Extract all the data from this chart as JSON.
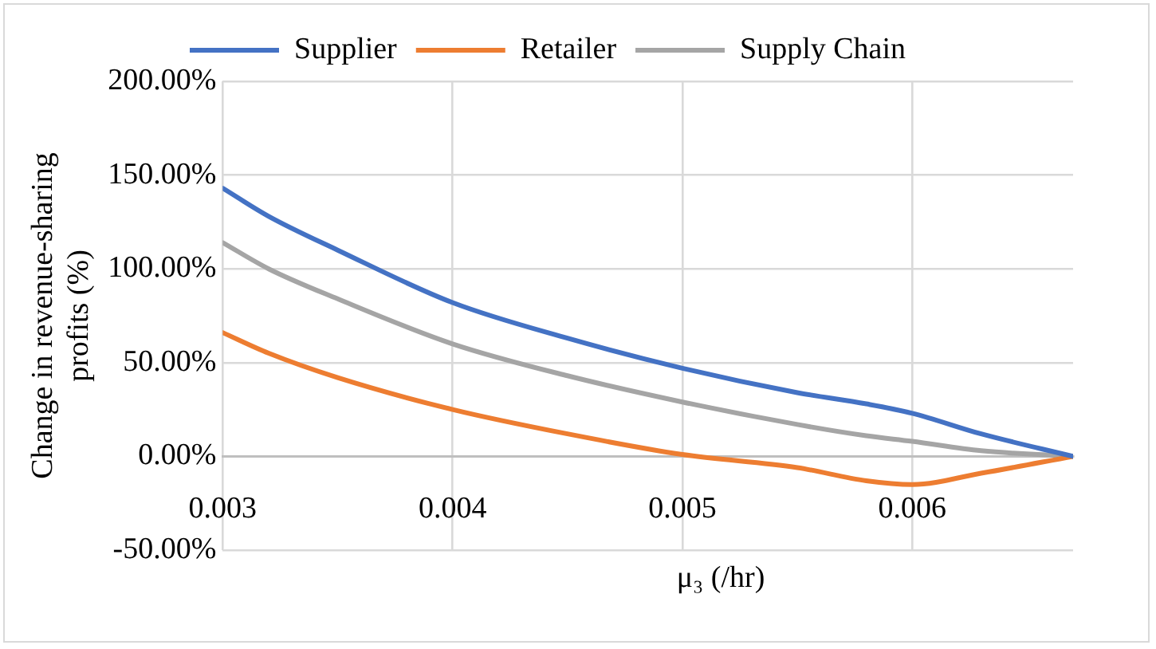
{
  "chart_data": {
    "type": "line",
    "xlabel": "μ₃ (/hr)",
    "ylabel": "Change in revenue-sharing profits (%)",
    "x": [
      0.003,
      0.0032,
      0.0035,
      0.004,
      0.0045,
      0.005,
      0.0055,
      0.0058,
      0.006,
      0.0063,
      0.0067
    ],
    "series": [
      {
        "name": "Supplier",
        "color": "#4472c4",
        "values": [
          143,
          128,
          110,
          82,
          63,
          47,
          34,
          28,
          23,
          12,
          0
        ]
      },
      {
        "name": "Retailer",
        "color": "#ed7d31",
        "values": [
          66,
          55,
          42,
          25,
          12,
          1,
          -6,
          -13,
          -15,
          -9,
          0
        ]
      },
      {
        "name": "Supply Chain",
        "color": "#a5a5a5",
        "values": [
          114,
          100,
          84,
          60,
          43,
          29,
          17,
          11,
          8,
          3,
          0
        ]
      }
    ],
    "xlim": [
      0.003,
      0.0067
    ],
    "xticks": [
      0.003,
      0.004,
      0.005,
      0.006
    ],
    "ylim": [
      -50,
      200
    ],
    "yticks": [
      {
        "value": -50,
        "label": "-50.00%"
      },
      {
        "value": 0,
        "label": "0.00%"
      },
      {
        "value": 50,
        "label": "50.00%"
      },
      {
        "value": 100,
        "label": "100.00%"
      },
      {
        "value": 150,
        "label": "150.00%"
      },
      {
        "value": 200,
        "label": "200.00%"
      }
    ],
    "grid": true,
    "legend": "top",
    "marker": "none",
    "line_style": "solid"
  }
}
